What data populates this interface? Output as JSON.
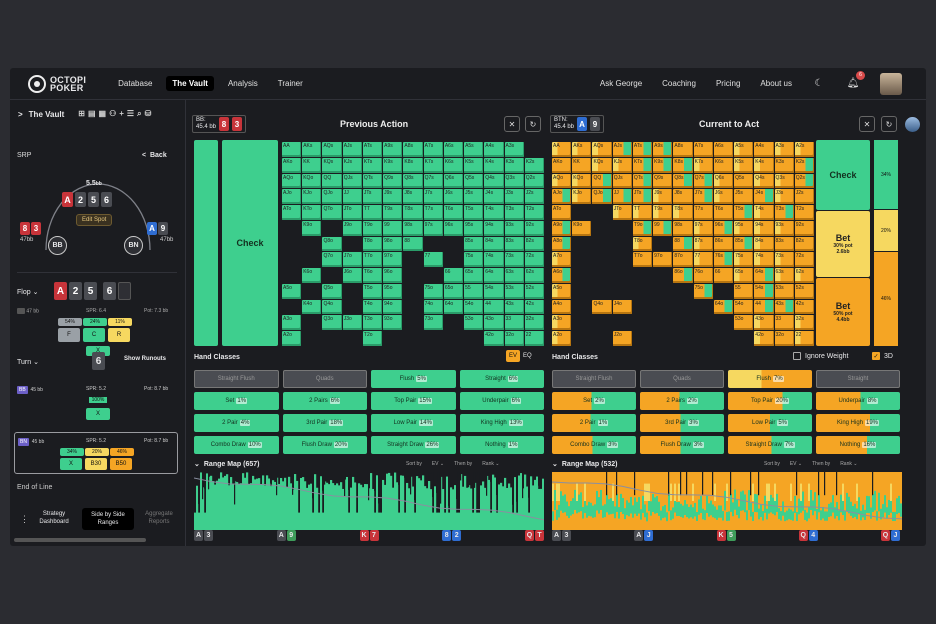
{
  "colors": {
    "green": "#3ecf8e",
    "orange": "#f5a524",
    "yellow": "#f6d860",
    "dark": "#1b1c20"
  },
  "topbar": {
    "logo_line1": "OCTOPI",
    "logo_line2": "POKER",
    "nav": [
      "Database",
      "The Vault",
      "Analysis",
      "Trainer"
    ],
    "active_nav": "The Vault",
    "right_nav": [
      "Ask George",
      "Coaching",
      "Pricing",
      "About us"
    ],
    "notifications": "6",
    "moon_icon": "moon-icon",
    "bell_icon": "bell-icon"
  },
  "sidebar": {
    "title": "The Vault",
    "chevron": ">",
    "spot": "SRP",
    "back": "Back",
    "pot": "5.5",
    "pot_unit": "bb",
    "pot_cards": [
      "A",
      "2",
      "5",
      "6"
    ],
    "edit_spot": "Edit Spot",
    "bb_label": "BB",
    "bb_stack": "47",
    "bb_cards": [
      "8",
      "3"
    ],
    "bn_label": "BN",
    "bn_stack": "47",
    "bn_cards": [
      "A",
      "9"
    ],
    "flop_label": "Flop",
    "flop_cards": [
      "A",
      "2",
      "5",
      "6"
    ],
    "flop_stack": "47 bb",
    "flop_spr": "SPR: 6.4",
    "flop_pot": "Pot: 7.3 bb",
    "flop_pcts": [
      "54%",
      "24%",
      "11%"
    ],
    "flop_actions": [
      "F",
      "C",
      "R"
    ],
    "flop_x": "X",
    "turn_label": "Turn",
    "turn_card": "6",
    "show_runouts": "Show Runouts",
    "turn_bb_label": "BB",
    "turn_stack": "45 bb",
    "turn_spr": "SPR: 5.2",
    "turn_pot": "Pot: 8.7 bb",
    "turn_pct": "100%",
    "turn_x": "X",
    "bn_row_label": "BN",
    "bn_row_stack": "45 bb",
    "bn_row_spr": "SPR: 5.2",
    "bn_row_pot": "Pot: 8.7 bb",
    "bn_pcts": [
      "34%",
      "20%",
      "46%"
    ],
    "bn_actions": [
      "X",
      "B30",
      "B50"
    ],
    "end_of_line": "End of Line",
    "tabs": [
      "Strategy Dashboard",
      "Side by Side Ranges",
      "Aggregate Reports"
    ],
    "active_tab": "Side by Side Ranges"
  },
  "left_panel": {
    "player": "BB:",
    "stack": "45.4 bb",
    "cards": [
      "8",
      "3"
    ],
    "title": "Previous Action",
    "check_label": "Check",
    "hand_classes_title": "Hand Classes",
    "ev_label": "EV",
    "eq_label": "EQ",
    "classes": [
      {
        "name": "Straight Flush",
        "pct": ""
      },
      {
        "name": "Quads",
        "pct": ""
      },
      {
        "name": "Flush",
        "pct": "5%"
      },
      {
        "name": "Straight",
        "pct": "6%"
      },
      {
        "name": "Set",
        "pct": "1%"
      },
      {
        "name": "2 Pairs",
        "pct": "6%"
      },
      {
        "name": "Top Pair",
        "pct": "15%"
      },
      {
        "name": "Underpair",
        "pct": "6%"
      },
      {
        "name": "2 Pair",
        "pct": "4%"
      },
      {
        "name": "3rd Pair",
        "pct": "18%"
      },
      {
        "name": "Low Pair",
        "pct": "14%"
      },
      {
        "name": "King High",
        "pct": "13%"
      },
      {
        "name": "Combo Draw",
        "pct": "10%"
      },
      {
        "name": "Flush Draw",
        "pct": "20%"
      },
      {
        "name": "Straight Draw",
        "pct": "26%"
      },
      {
        "name": "Nothing",
        "pct": "1%"
      }
    ],
    "range_map": "Range Map (657)",
    "sort_by": "Sort by",
    "sort_value": "EV",
    "then_by": "Then by",
    "then_value": "Rank",
    "axis": [
      [
        "A",
        "3"
      ],
      [
        "A",
        "9"
      ],
      [
        "K",
        "7"
      ],
      [
        "8",
        "2"
      ],
      [
        "Q",
        "T"
      ]
    ]
  },
  "right_panel": {
    "player": "BTN:",
    "stack": "45.4 bb",
    "cards": [
      "A",
      "9"
    ],
    "title": "Current to Act",
    "actions": [
      {
        "label": "Check",
        "sub": "",
        "pct": "34%"
      },
      {
        "label": "Bet",
        "sub": "30% pot\n2.6bb",
        "pct": "20%"
      },
      {
        "label": "Bet",
        "sub": "50% pot\n4.4bb",
        "pct": "46%"
      }
    ],
    "hand_classes_title": "Hand Classes",
    "ignore_weight": "Ignore Weight",
    "three_d": "3D",
    "classes": [
      {
        "name": "Straight Flush",
        "pct": ""
      },
      {
        "name": "Quads",
        "pct": ""
      },
      {
        "name": "Flush",
        "pct": "7%"
      },
      {
        "name": "Straight",
        "pct": ""
      },
      {
        "name": "Set",
        "pct": "2%"
      },
      {
        "name": "2 Pairs",
        "pct": "2%"
      },
      {
        "name": "Top Pair",
        "pct": "20%"
      },
      {
        "name": "Underpair",
        "pct": "8%"
      },
      {
        "name": "2 Pair",
        "pct": "1%"
      },
      {
        "name": "3rd Pair",
        "pct": "3%"
      },
      {
        "name": "Low Pair",
        "pct": "5%"
      },
      {
        "name": "King High",
        "pct": "19%"
      },
      {
        "name": "Combo Draw",
        "pct": "3%"
      },
      {
        "name": "Flush Draw",
        "pct": "3%"
      },
      {
        "name": "Straight Draw",
        "pct": "7%"
      },
      {
        "name": "Nothing",
        "pct": "16%"
      }
    ],
    "range_map": "Range Map (532)",
    "sort_by": "Sort by",
    "sort_value": "EV",
    "then_by": "Then by",
    "then_value": "Rank",
    "axis": [
      [
        "A",
        "3"
      ],
      [
        "A",
        "J"
      ],
      [
        "K",
        "5"
      ],
      [
        "Q",
        "4"
      ],
      [
        "Q",
        "J"
      ]
    ]
  },
  "ranks": [
    "A",
    "K",
    "Q",
    "J",
    "T",
    "9",
    "8",
    "7",
    "6",
    "5",
    "4",
    "3",
    "2"
  ]
}
